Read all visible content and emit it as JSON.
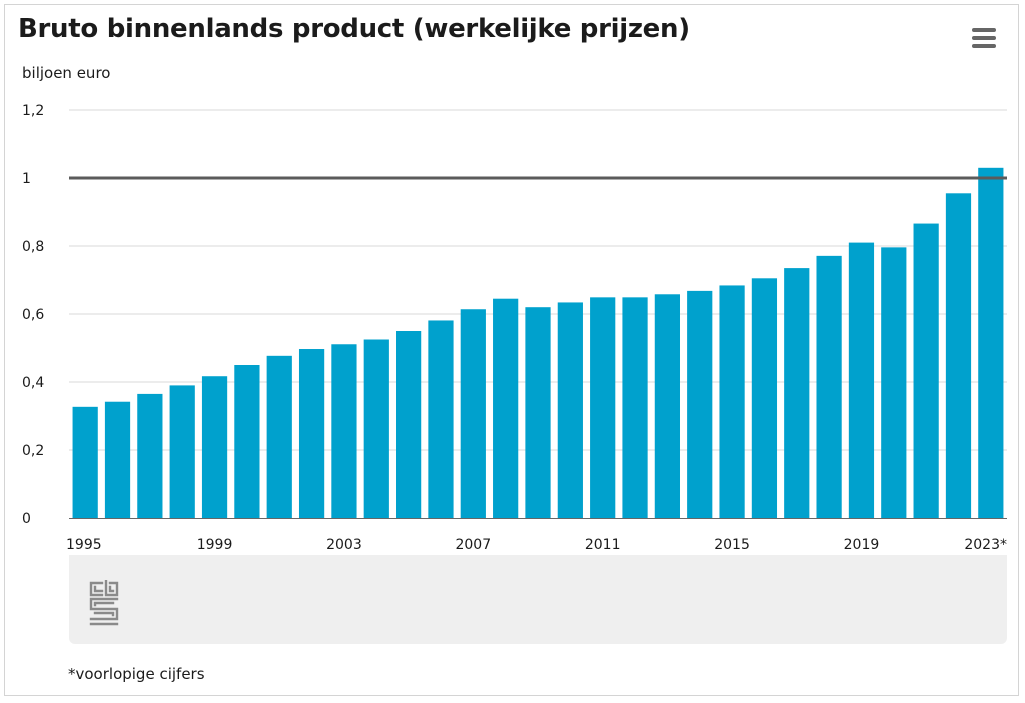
{
  "title": "Bruto binnenlands product (werkelijke prijzen)",
  "unit_label": "biljoen euro",
  "footnote": "*voorlopige cijfers",
  "menu_icon": "hamburger-menu-icon",
  "logo_icon": "cbs-logo-icon",
  "chart_data": {
    "type": "bar",
    "title": "Bruto binnenlands product (werkelijke prijzen)",
    "ylabel": "biljoen euro",
    "xlabel": "",
    "categories": [
      "1995",
      "1996",
      "1997",
      "1998",
      "1999",
      "2000",
      "2001",
      "2002",
      "2003",
      "2004",
      "2005",
      "2006",
      "2007",
      "2008",
      "2009",
      "2010",
      "2011",
      "2012",
      "2013",
      "2014",
      "2015",
      "2016",
      "2017",
      "2018",
      "2019",
      "2020",
      "2021",
      "2022",
      "2023*"
    ],
    "values": [
      0.327,
      0.342,
      0.365,
      0.39,
      0.417,
      0.45,
      0.477,
      0.497,
      0.511,
      0.525,
      0.55,
      0.581,
      0.614,
      0.645,
      0.62,
      0.634,
      0.649,
      0.649,
      0.658,
      0.668,
      0.684,
      0.705,
      0.735,
      0.771,
      0.81,
      0.796,
      0.866,
      0.955,
      1.03
    ],
    "x_tick_labels": [
      "1995",
      "1999",
      "2003",
      "2007",
      "2011",
      "2015",
      "2019",
      "2023*"
    ],
    "y_ticks": [
      0,
      0.2,
      0.4,
      0.6,
      0.8,
      1,
      1.2
    ],
    "y_tick_labels": [
      "0",
      "0,2",
      "0,4",
      "0,6",
      "0,8",
      "1",
      "1,2"
    ],
    "ylim": [
      0,
      1.2
    ],
    "reference_line": 1,
    "grid": true,
    "colors": {
      "bar": "#00a1cd",
      "reference_line": "#5b5b5b",
      "grid": "#d9d9d9",
      "axis": "#666666"
    }
  }
}
